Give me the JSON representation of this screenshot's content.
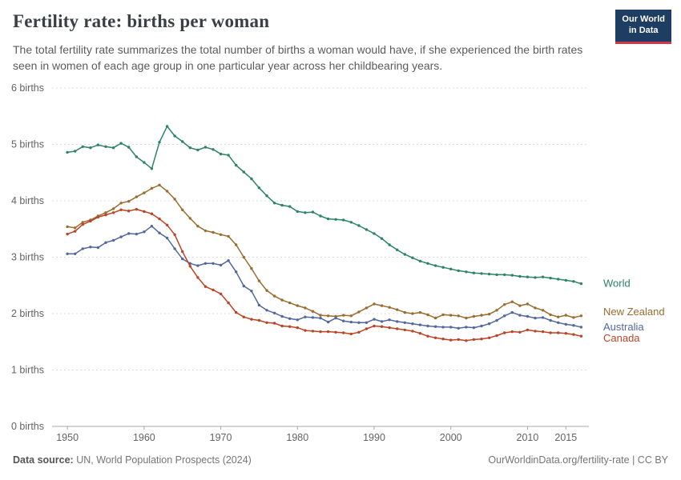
{
  "header": {
    "title": "Fertility rate: births per woman",
    "subtitle": "The total fertility rate summarizes the total number of births a woman would have, if she experienced the birth rates seen in women of each age group in one particular year across her childbearing years.",
    "logo": {
      "line1": "Our World",
      "line2": "in Data",
      "bg": "#1d3d63",
      "stripe": "#d0374b"
    }
  },
  "footer": {
    "source_label": "Data source:",
    "source_text": " UN, World Population Prospects (2024)",
    "right_text": "OurWorldinData.org/fertility-rate | CC BY"
  },
  "chart_data": {
    "type": "line",
    "title": "Fertility rate: births per woman",
    "ylabel": "births",
    "ylim": [
      0,
      6
    ],
    "y_ticks": [
      0,
      1,
      2,
      3,
      4,
      5,
      6
    ],
    "y_tick_labels": [
      "0 births",
      "1 births",
      "2 births",
      "3 births",
      "4 births",
      "5 births",
      "6 births"
    ],
    "x_domain": [
      1948,
      2018
    ],
    "x_ticks": [
      1950,
      1960,
      1970,
      1980,
      1990,
      2000,
      2010,
      2015
    ],
    "grid": "horizontal-dashed",
    "legend_position": "right-end-labels",
    "years": [
      1950,
      1951,
      1952,
      1953,
      1954,
      1955,
      1956,
      1957,
      1958,
      1959,
      1960,
      1961,
      1962,
      1963,
      1964,
      1965,
      1966,
      1967,
      1968,
      1969,
      1970,
      1971,
      1972,
      1973,
      1974,
      1975,
      1976,
      1977,
      1978,
      1979,
      1980,
      1981,
      1982,
      1983,
      1984,
      1985,
      1986,
      1987,
      1988,
      1989,
      1990,
      1991,
      1992,
      1993,
      1994,
      1995,
      1996,
      1997,
      1998,
      1999,
      2000,
      2001,
      2002,
      2003,
      2004,
      2005,
      2006,
      2007,
      2008,
      2009,
      2010,
      2011,
      2012,
      2013,
      2014,
      2015,
      2016,
      2017
    ],
    "series": [
      {
        "name": "World",
        "color": "#2c8465",
        "values": [
          4.86,
          4.88,
          4.96,
          4.94,
          4.99,
          4.96,
          4.94,
          5.02,
          4.95,
          4.78,
          4.68,
          4.57,
          5.04,
          5.32,
          5.15,
          5.05,
          4.94,
          4.9,
          4.95,
          4.91,
          4.83,
          4.81,
          4.63,
          4.51,
          4.39,
          4.23,
          4.09,
          3.96,
          3.92,
          3.9,
          3.81,
          3.79,
          3.8,
          3.73,
          3.68,
          3.67,
          3.66,
          3.62,
          3.56,
          3.49,
          3.42,
          3.33,
          3.22,
          3.13,
          3.05,
          2.99,
          2.93,
          2.89,
          2.85,
          2.82,
          2.79,
          2.76,
          2.74,
          2.72,
          2.71,
          2.7,
          2.69,
          2.69,
          2.68,
          2.66,
          2.65,
          2.64,
          2.65,
          2.63,
          2.61,
          2.59,
          2.57,
          2.53
        ]
      },
      {
        "name": "New Zealand",
        "color": "#996d2f",
        "values": [
          3.54,
          3.52,
          3.62,
          3.66,
          3.73,
          3.79,
          3.86,
          3.96,
          3.99,
          4.07,
          4.14,
          4.22,
          4.28,
          4.17,
          4.03,
          3.84,
          3.69,
          3.55,
          3.47,
          3.44,
          3.4,
          3.37,
          3.22,
          3.0,
          2.8,
          2.58,
          2.41,
          2.31,
          2.24,
          2.19,
          2.14,
          2.1,
          2.04,
          1.97,
          1.96,
          1.95,
          1.97,
          1.96,
          2.03,
          2.1,
          2.17,
          2.14,
          2.11,
          2.07,
          2.02,
          2.0,
          2.02,
          1.98,
          1.92,
          1.98,
          1.97,
          1.96,
          1.92,
          1.95,
          1.97,
          1.99,
          2.06,
          2.16,
          2.21,
          2.14,
          2.17,
          2.1,
          2.06,
          1.98,
          1.94,
          1.97,
          1.93,
          1.96
        ]
      },
      {
        "name": "Australia",
        "color": "#53679f",
        "values": [
          3.06,
          3.06,
          3.15,
          3.18,
          3.17,
          3.26,
          3.3,
          3.36,
          3.42,
          3.41,
          3.45,
          3.55,
          3.43,
          3.34,
          3.15,
          2.97,
          2.89,
          2.85,
          2.89,
          2.89,
          2.86,
          2.94,
          2.74,
          2.49,
          2.4,
          2.15,
          2.06,
          2.01,
          1.95,
          1.91,
          1.89,
          1.94,
          1.93,
          1.92,
          1.85,
          1.92,
          1.87,
          1.85,
          1.84,
          1.84,
          1.9,
          1.86,
          1.89,
          1.86,
          1.84,
          1.82,
          1.8,
          1.78,
          1.77,
          1.76,
          1.76,
          1.74,
          1.76,
          1.75,
          1.78,
          1.82,
          1.88,
          1.96,
          2.02,
          1.97,
          1.95,
          1.92,
          1.93,
          1.88,
          1.84,
          1.81,
          1.79,
          1.76
        ]
      },
      {
        "name": "Canada",
        "color": "#bb4425",
        "values": [
          3.41,
          3.46,
          3.58,
          3.64,
          3.71,
          3.75,
          3.79,
          3.84,
          3.82,
          3.85,
          3.81,
          3.77,
          3.68,
          3.57,
          3.4,
          3.1,
          2.84,
          2.64,
          2.48,
          2.42,
          2.35,
          2.19,
          2.02,
          1.94,
          1.9,
          1.88,
          1.84,
          1.83,
          1.78,
          1.77,
          1.75,
          1.7,
          1.69,
          1.68,
          1.68,
          1.67,
          1.66,
          1.64,
          1.67,
          1.73,
          1.78,
          1.77,
          1.75,
          1.73,
          1.71,
          1.69,
          1.65,
          1.6,
          1.57,
          1.55,
          1.53,
          1.54,
          1.52,
          1.54,
          1.55,
          1.57,
          1.61,
          1.66,
          1.68,
          1.67,
          1.71,
          1.69,
          1.68,
          1.66,
          1.66,
          1.65,
          1.63,
          1.6
        ]
      }
    ]
  }
}
